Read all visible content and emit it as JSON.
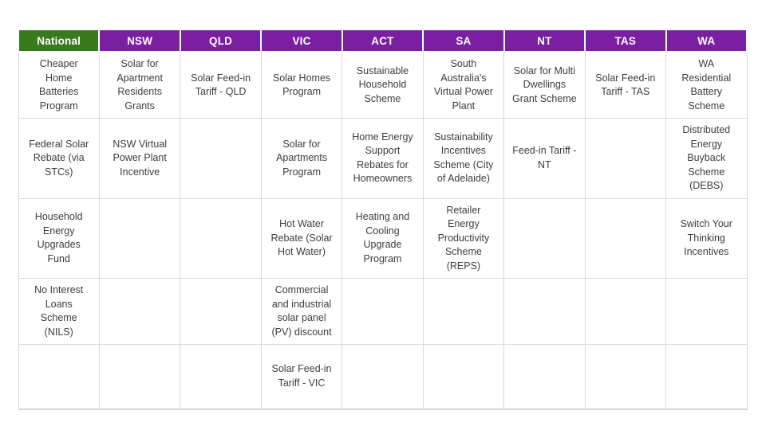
{
  "table": {
    "columns": [
      {
        "label": "National",
        "style": "national"
      },
      {
        "label": "NSW",
        "style": "state"
      },
      {
        "label": "QLD",
        "style": "state"
      },
      {
        "label": "VIC",
        "style": "state"
      },
      {
        "label": "ACT",
        "style": "state"
      },
      {
        "label": "SA",
        "style": "state"
      },
      {
        "label": "NT",
        "style": "state"
      },
      {
        "label": "TAS",
        "style": "state"
      },
      {
        "label": "WA",
        "style": "state"
      }
    ],
    "rows": [
      [
        "Cheaper Home Batteries Program",
        "Solar for Apartment Residents Grants",
        "Solar Feed-in Tariff - QLD",
        "Solar Homes Program",
        "Sustainable Household Scheme",
        "South Australia's Virtual Power Plant",
        "Solar for Multi Dwellings Grant Scheme",
        "Solar Feed-in Tariff - TAS",
        "WA Residential Battery Scheme"
      ],
      [
        "Federal Solar Rebate (via STCs)",
        "NSW Virtual Power Plant Incentive",
        "",
        "Solar for Apartments Program",
        "Home Energy Support Rebates for Homeowners",
        "Sustainability Incentives Scheme (City of Adelaide)",
        "Feed-in Tariff - NT",
        "",
        "Distributed Energy Buyback Scheme (DEBS)"
      ],
      [
        "Household Energy Upgrades Fund",
        "",
        "",
        "Hot Water Rebate (Solar Hot Water)",
        "Heating and Cooling Upgrade Program",
        "Retailer Energy Productivity Scheme (REPS)",
        "",
        "",
        "Switch Your Thinking Incentives"
      ],
      [
        "No Interest Loans Scheme (NILS)",
        "",
        "",
        "Commercial and industrial solar panel (PV) discount",
        "",
        "",
        "",
        "",
        ""
      ],
      [
        "",
        "",
        "",
        "Solar Feed-in Tariff - VIC",
        "",
        "",
        "",
        "",
        ""
      ]
    ],
    "colors": {
      "national_header": "#3a7a1e",
      "state_header": "#7a1ea2",
      "header_text": "#ffffff",
      "cell_text": "#3d3d3d",
      "grid": "#d9d9d9"
    }
  }
}
